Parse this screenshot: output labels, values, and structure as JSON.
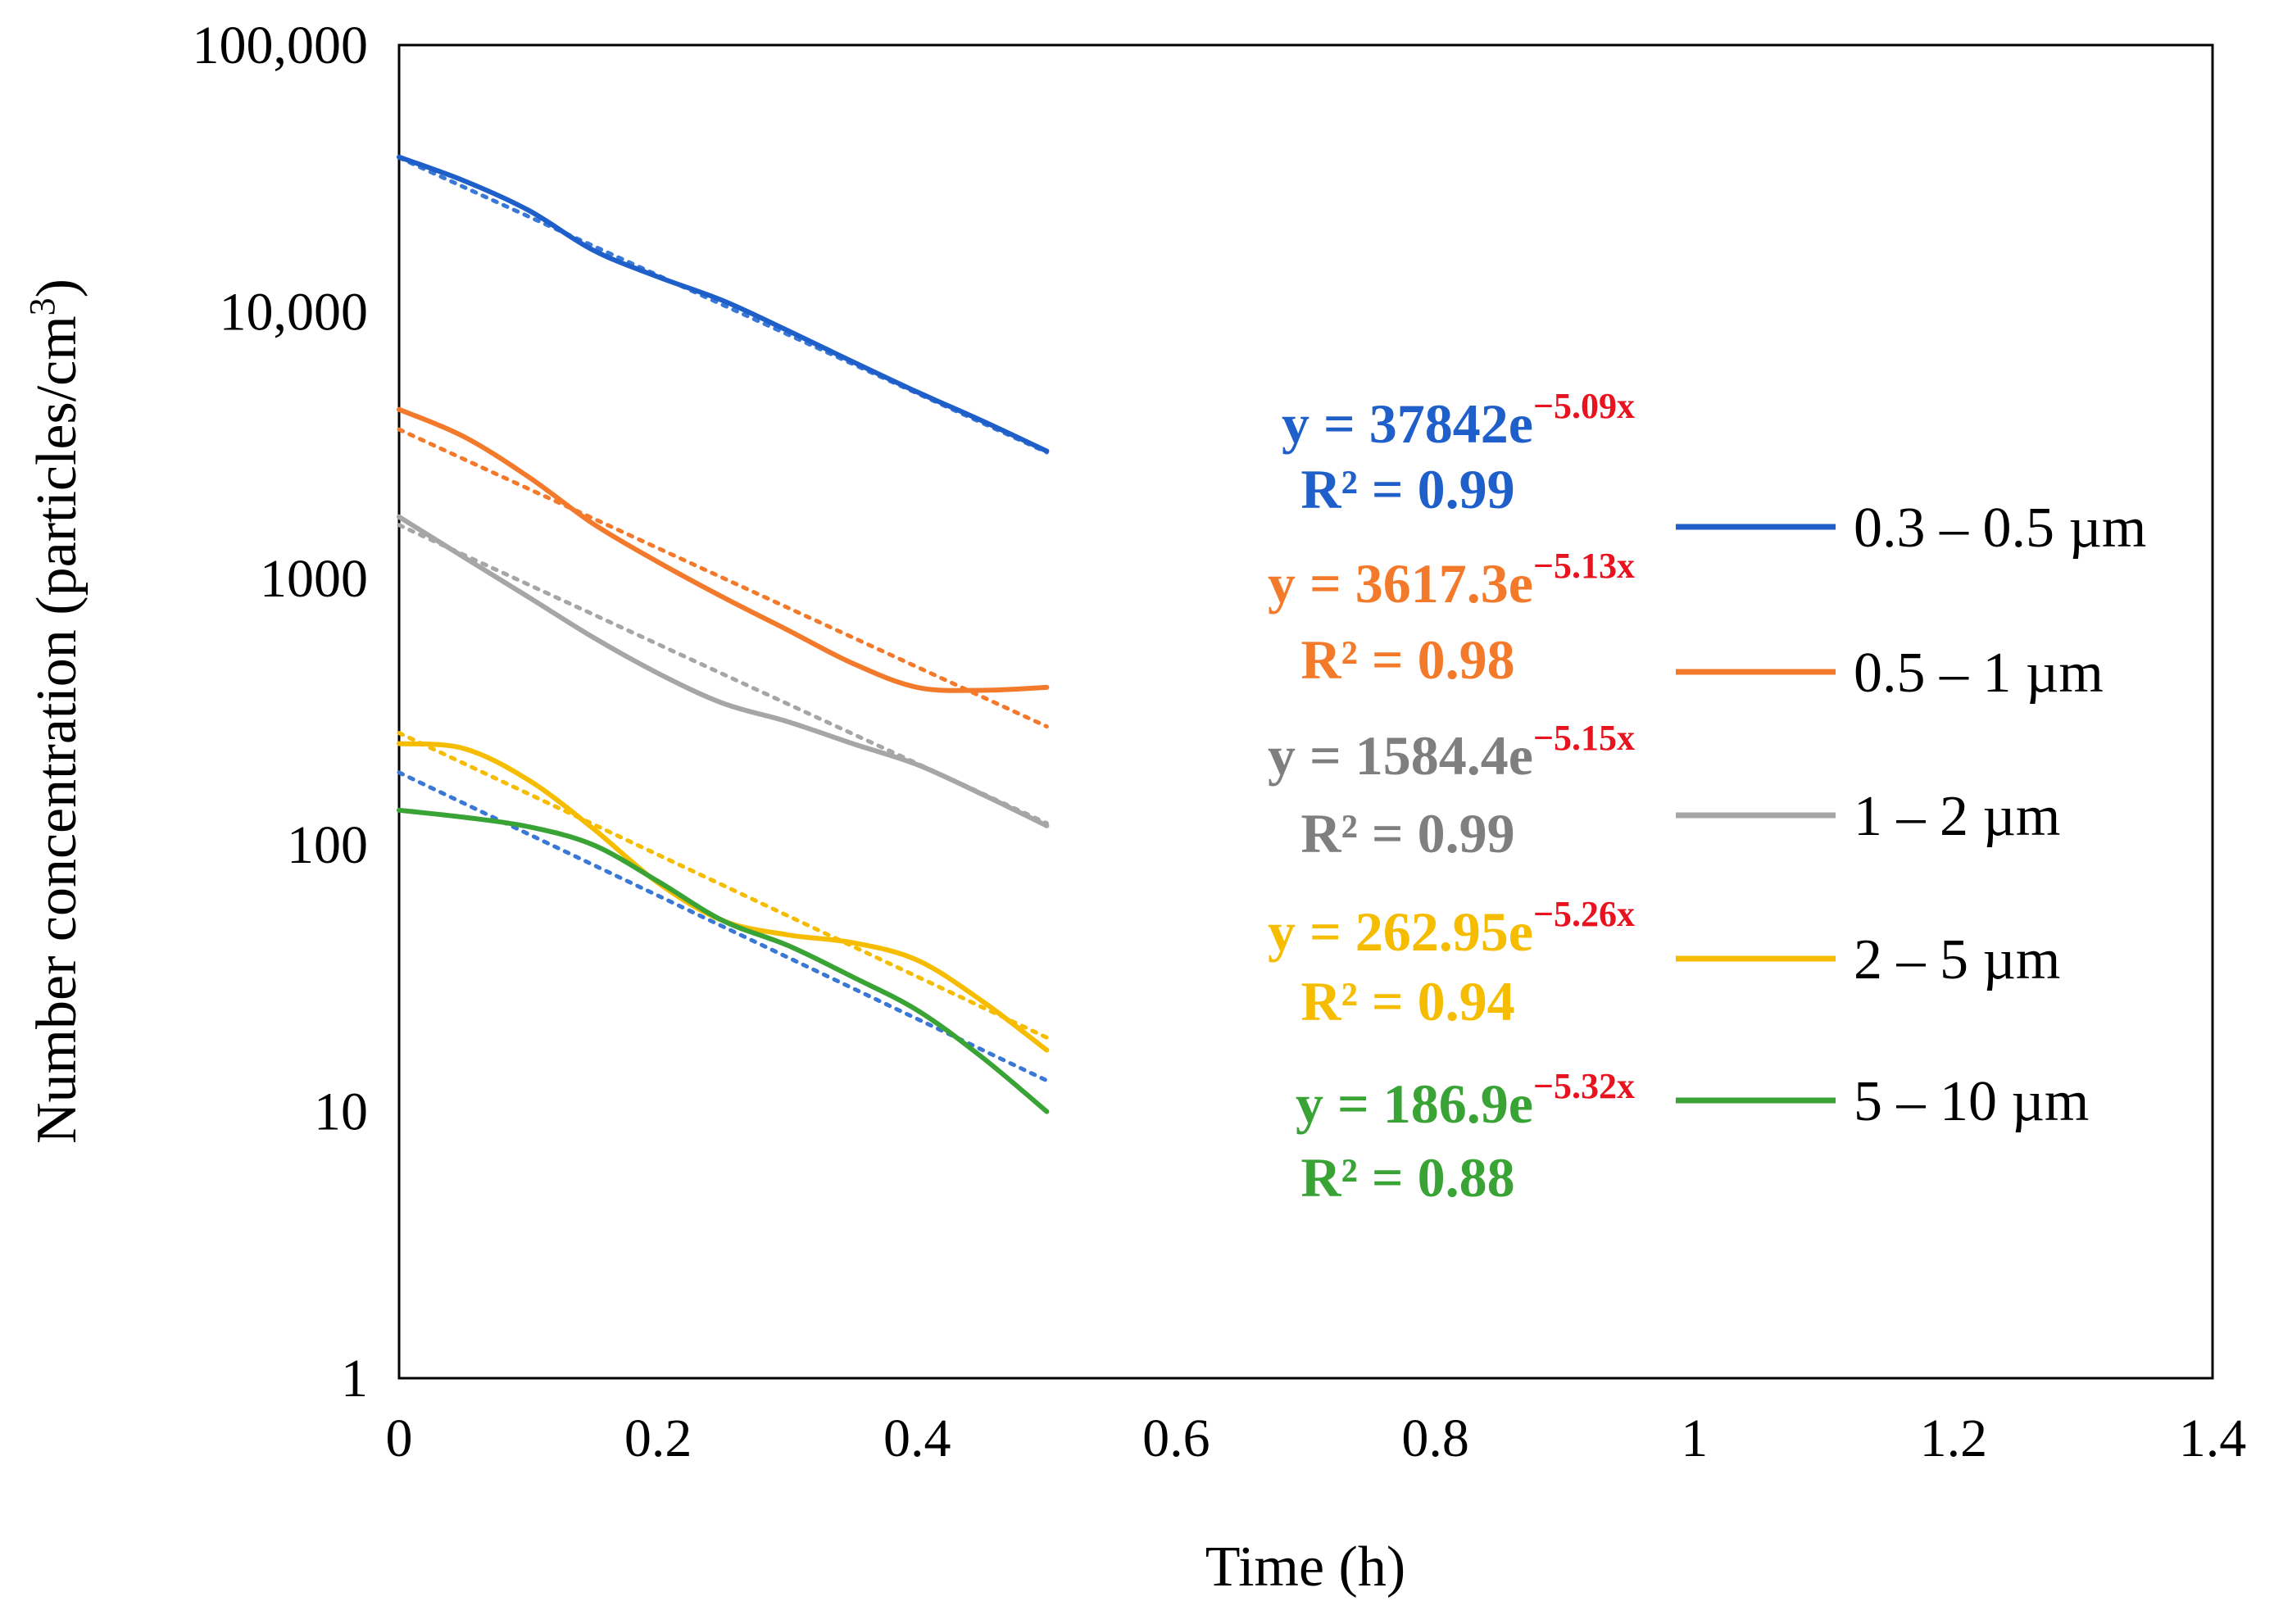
{
  "chart_data": {
    "type": "line",
    "yscale": "log",
    "xlabel": "Time (h)",
    "ylabel": "Number concentration (particles/cm",
    "ylabel_sup": "3",
    "ylabel_close": ")",
    "xlim": [
      0,
      1.4
    ],
    "ylim": [
      1,
      100000
    ],
    "xticks": [
      0,
      0.2,
      0.4,
      0.6,
      0.8,
      1,
      1.2,
      1.4
    ],
    "xtick_labels": [
      "0",
      "0.2",
      "0.4",
      "0.6",
      "0.8",
      "1",
      "1.2",
      "1.4"
    ],
    "yticks": [
      1,
      10,
      100,
      1000,
      10000,
      100000
    ],
    "ytick_labels": [
      "1",
      "10",
      "100",
      "1000",
      "10,000",
      "100,000"
    ],
    "series": [
      {
        "name": "0.3 – 0.5 µm",
        "color": "#1f5fc9",
        "trend_color": "#3a78d6",
        "x": [
          0,
          0.05,
          0.1,
          0.15,
          0.2,
          0.25,
          0.3,
          0.35,
          0.4,
          0.45,
          0.5
        ],
        "values": [
          38000,
          31000,
          24000,
          17000,
          13500,
          11000,
          8500,
          6500,
          5000,
          3900,
          3000
        ],
        "fit": {
          "a": 37842,
          "b": -5.09,
          "r2": "0.99"
        },
        "equation": "y = 37842e",
        "exponent": "−5.09x",
        "r2_label": "R² = 0.99"
      },
      {
        "name": "0.5 – 1 µm",
        "color": "#f47a2b",
        "trend_color": "#f47a2b",
        "x": [
          0,
          0.05,
          0.1,
          0.15,
          0.2,
          0.25,
          0.3,
          0.35,
          0.4,
          0.45,
          0.5
        ],
        "values": [
          4300,
          3400,
          2400,
          1600,
          1150,
          850,
          640,
          480,
          390,
          380,
          390
        ],
        "fit": {
          "a": 3617.3,
          "b": -5.13,
          "r2": "0.98"
        },
        "equation": "y = 3617.3e",
        "exponent": "−5.13x",
        "r2_label": "R² = 0.98"
      },
      {
        "name": "1 – 2 µm",
        "color": "#a6a6a6",
        "trend_color": "#a6a6a6",
        "eq_color": "#7f7f7f",
        "x": [
          0,
          0.05,
          0.1,
          0.15,
          0.2,
          0.25,
          0.3,
          0.35,
          0.4,
          0.45,
          0.5
        ],
        "values": [
          1700,
          1200,
          850,
          600,
          440,
          340,
          290,
          240,
          200,
          155,
          118
        ],
        "fit": {
          "a": 1584.4,
          "b": -5.15,
          "r2": "0.99"
        },
        "equation": "y = 1584.4e",
        "exponent": "−5.15x",
        "r2_label": "R² = 0.99"
      },
      {
        "name": "2 – 5 µm",
        "color": "#f5bc00",
        "trend_color": "#f5bc00",
        "x": [
          0,
          0.05,
          0.1,
          0.15,
          0.2,
          0.25,
          0.3,
          0.35,
          0.4,
          0.45,
          0.5
        ],
        "values": [
          240,
          230,
          175,
          115,
          72,
          52,
          46,
          43,
          37,
          26,
          17
        ],
        "fit": {
          "a": 262.95,
          "b": -5.26,
          "r2": "0.94"
        },
        "equation": "y = 262.95e",
        "exponent": "−5.26x",
        "r2_label": "R² = 0.94"
      },
      {
        "name": "5 – 10 µm",
        "color": "#3aa336",
        "trend_color": "#3a78d6",
        "x": [
          0,
          0.05,
          0.1,
          0.15,
          0.2,
          0.25,
          0.3,
          0.35,
          0.4,
          0.45,
          0.5
        ],
        "values": [
          135,
          127,
          117,
          100,
          73,
          52,
          42,
          32,
          24,
          16,
          10
        ],
        "fit": {
          "a": 186.9,
          "b": -5.32,
          "r2": "0.88"
        },
        "equation": "y = 186.9e",
        "exponent": "−5.32x",
        "r2_label": "R² = 0.88"
      }
    ],
    "legend_position": "right"
  }
}
